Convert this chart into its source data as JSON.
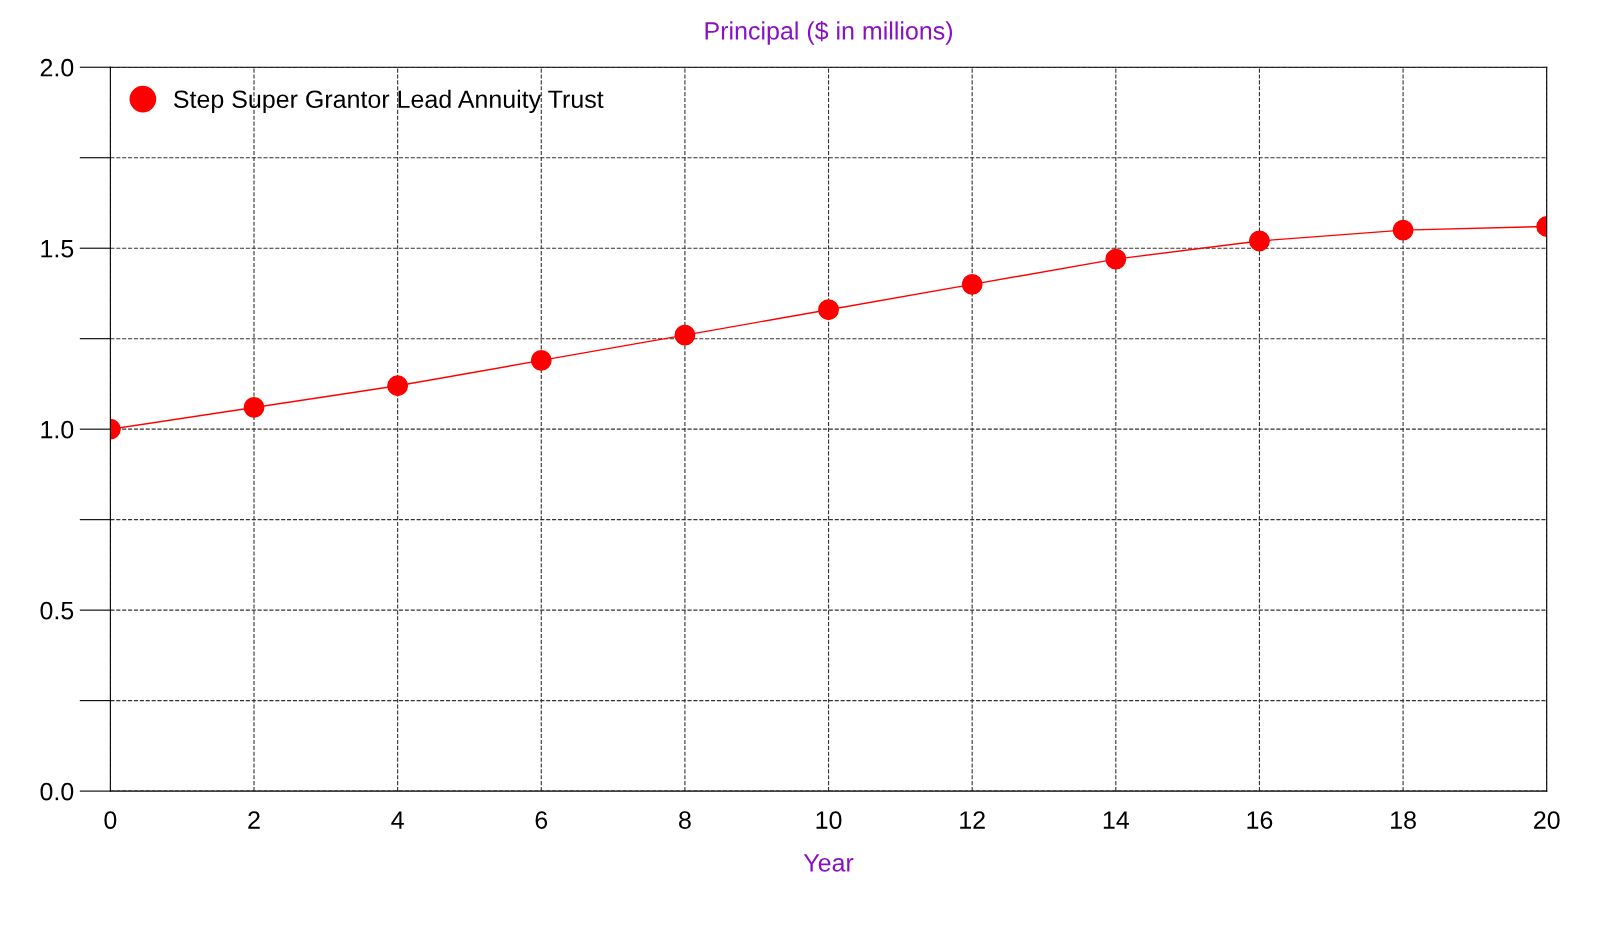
{
  "chart_data": {
    "type": "line",
    "title": "Principal ($ in millions)",
    "xlabel": "Year",
    "x": [
      0,
      2,
      4,
      6,
      8,
      10,
      12,
      14,
      16,
      18,
      20
    ],
    "series": [
      {
        "name": "Step Super Grantor Lead Annuity Trust",
        "color": "#ff0000",
        "values": [
          1.0,
          1.06,
          1.12,
          1.19,
          1.26,
          1.33,
          1.4,
          1.47,
          1.52,
          1.55,
          1.56
        ]
      }
    ],
    "xlim": [
      0,
      20
    ],
    "xticks": [
      0,
      2,
      4,
      6,
      8,
      10,
      12,
      14,
      16,
      18,
      20
    ],
    "ylim": [
      0,
      2
    ],
    "yticks": [
      {
        "value": 0,
        "label": "0.0"
      },
      {
        "value": 0.25,
        "label": null
      },
      {
        "value": 0.5,
        "label": "0.5"
      },
      {
        "value": 0.75,
        "label": null
      },
      {
        "value": 1,
        "label": "1.0"
      },
      {
        "value": 1.25,
        "label": null
      },
      {
        "value": 1.5,
        "label": "1.5"
      },
      {
        "value": 1.75,
        "label": null
      },
      {
        "value": 2,
        "label": "2.0"
      }
    ],
    "grid": true,
    "legend": "top left",
    "marker": "circle",
    "line_style": "solid"
  }
}
